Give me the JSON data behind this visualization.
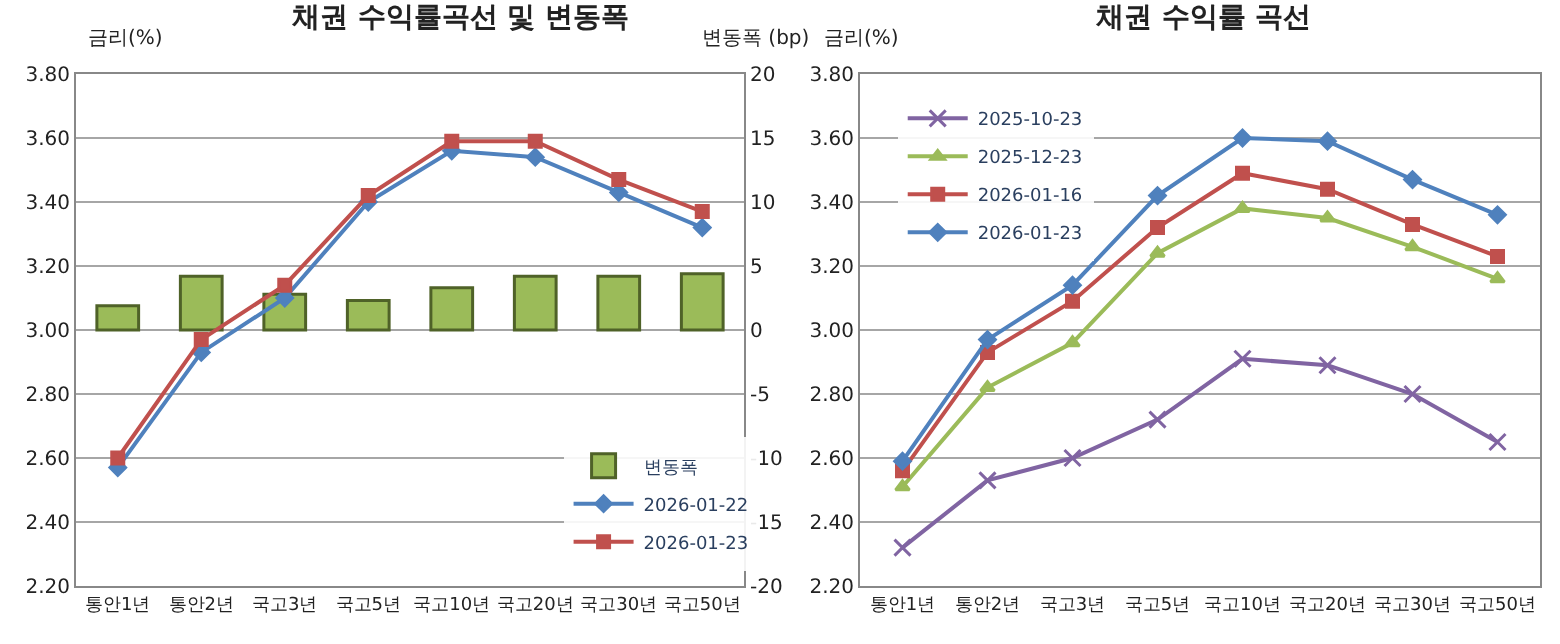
{
  "chart_data": [
    {
      "type": "line",
      "title": "채권 수익률곡선 및 변동폭",
      "ylabel": "금리(%)",
      "y2label": "변동폭 (bp)",
      "categories": [
        "통안1년",
        "통안2년",
        "국고3년",
        "국고5년",
        "국고10년",
        "국고20년",
        "국고30년",
        "국고50년"
      ],
      "ylim": [
        2.2,
        3.8
      ],
      "yticks": [
        {
          "value": 2.2,
          "label": "2.20"
        },
        {
          "value": 2.4,
          "label": "2.40"
        },
        {
          "value": 2.6,
          "label": "2.60"
        },
        {
          "value": 2.8,
          "label": "2.80"
        },
        {
          "value": 3.0,
          "label": "3.00"
        },
        {
          "value": 3.2,
          "label": "3.20"
        },
        {
          "value": 3.4,
          "label": "3.40"
        },
        {
          "value": 3.6,
          "label": "3.60"
        },
        {
          "value": 3.8,
          "label": "3.80"
        }
      ],
      "y2lim": [
        -20,
        20
      ],
      "y2ticks": [
        -20,
        -15,
        -10,
        -5,
        0,
        5,
        10,
        15,
        20
      ],
      "grid": "y",
      "legend": "bottom right",
      "series": [
        {
          "name": "변동폭",
          "type": "bar",
          "axis": "y2",
          "color": "#9bbb59",
          "values": [
            1.9,
            4.2,
            2.8,
            2.3,
            3.3,
            4.2,
            4.2,
            4.4
          ]
        },
        {
          "name": "2026-01-22",
          "color": "#4f81bd",
          "marker": "diamond",
          "values": [
            2.57,
            2.93,
            3.1,
            3.4,
            3.56,
            3.54,
            3.43,
            3.32
          ]
        },
        {
          "name": "2026-01-23",
          "color": "#c0504d",
          "marker": "square",
          "values": [
            2.6,
            2.97,
            3.14,
            3.42,
            3.59,
            3.59,
            3.47,
            3.37
          ]
        }
      ]
    },
    {
      "type": "line",
      "title": "채권 수익률 곡선",
      "ylabel": "금리(%)",
      "categories": [
        "통안1년",
        "통안2년",
        "국고3년",
        "국고5년",
        "국고10년",
        "국고20년",
        "국고30년",
        "국고50년"
      ],
      "ylim": [
        2.2,
        3.8
      ],
      "yticks": [
        {
          "value": 2.2,
          "label": "2.20"
        },
        {
          "value": 2.4,
          "label": "2.40"
        },
        {
          "value": 2.6,
          "label": "2.60"
        },
        {
          "value": 2.8,
          "label": "2.80"
        },
        {
          "value": 3.0,
          "label": "3.00"
        },
        {
          "value": 3.2,
          "label": "3.20"
        },
        {
          "value": 3.4,
          "label": "3.40"
        },
        {
          "value": 3.6,
          "label": "3.60"
        },
        {
          "value": 3.8,
          "label": "3.80"
        }
      ],
      "grid": "y",
      "legend": "top left",
      "series": [
        {
          "name": "2025-10-23",
          "color": "#8064a2",
          "marker": "cross",
          "values": [
            2.32,
            2.53,
            2.6,
            2.72,
            2.91,
            2.89,
            2.8,
            2.65
          ]
        },
        {
          "name": "2025-12-23",
          "color": "#9bbb59",
          "marker": "triangle",
          "values": [
            2.51,
            2.82,
            2.96,
            3.24,
            3.38,
            3.35,
            3.26,
            3.16
          ]
        },
        {
          "name": "2026-01-16",
          "color": "#c0504d",
          "marker": "square",
          "values": [
            2.56,
            2.93,
            3.09,
            3.32,
            3.49,
            3.44,
            3.33,
            3.23
          ]
        },
        {
          "name": "2026-01-23",
          "color": "#4f81bd",
          "marker": "diamond",
          "values": [
            2.59,
            2.97,
            3.14,
            3.42,
            3.6,
            3.59,
            3.47,
            3.36
          ]
        }
      ]
    }
  ]
}
